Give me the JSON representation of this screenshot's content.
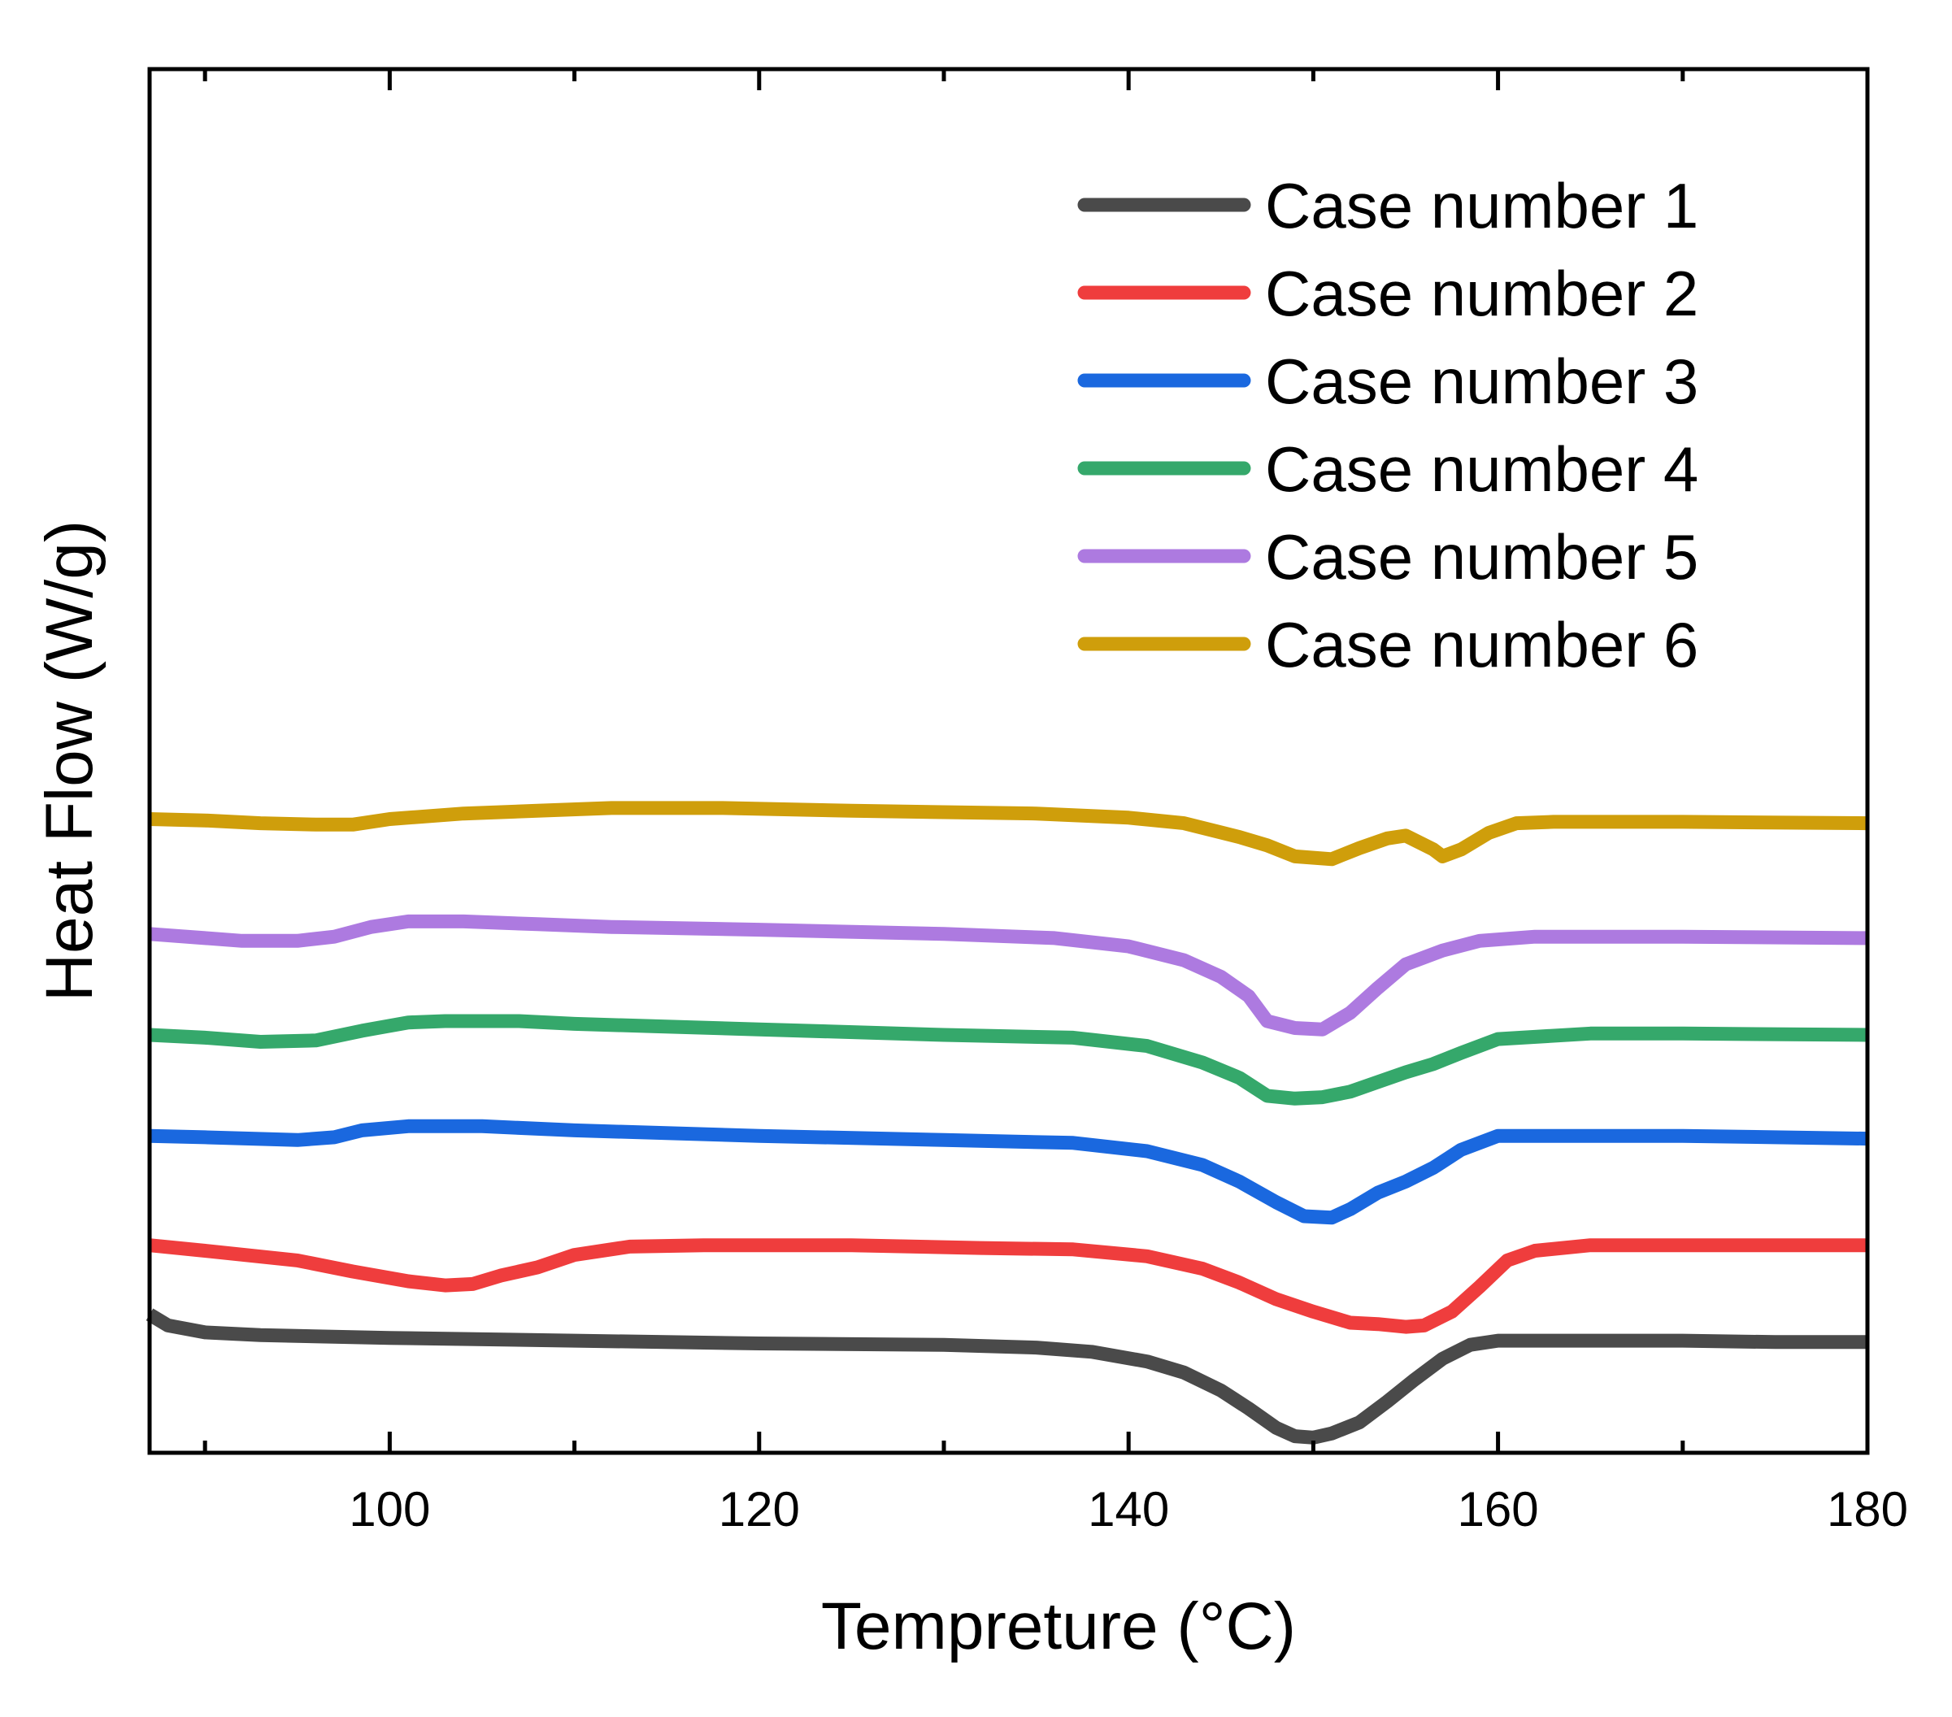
{
  "chart_data": {
    "type": "line",
    "title": "",
    "xlabel": "Tempreture (°C)",
    "ylabel": "Heat Flow (W/g)",
    "xlim": [
      87,
      180
    ],
    "ylim": [
      0,
      1
    ],
    "x_ticks": [
      100,
      120,
      140,
      160,
      180
    ],
    "x_tick_labels": [
      "100",
      "120",
      "140",
      "160",
      "180"
    ],
    "x_minor_ticks": [
      90,
      110,
      130,
      150,
      170
    ],
    "y_tick_labels_shown": false,
    "grid": false,
    "legend_position": "top-right",
    "series": [
      {
        "name": "Case number 1",
        "color": "#4a4a4a",
        "points": [
          [
            87,
            0.1
          ],
          [
            88,
            0.092
          ],
          [
            90,
            0.087
          ],
          [
            93,
            0.085
          ],
          [
            100,
            0.083
          ],
          [
            110,
            0.081
          ],
          [
            120,
            0.079
          ],
          [
            130,
            0.078
          ],
          [
            135,
            0.076
          ],
          [
            138,
            0.073
          ],
          [
            141,
            0.066
          ],
          [
            143,
            0.058
          ],
          [
            145,
            0.045
          ],
          [
            146.5,
            0.032
          ],
          [
            148,
            0.018
          ],
          [
            149,
            0.012
          ],
          [
            150,
            0.011
          ],
          [
            151,
            0.014
          ],
          [
            152.5,
            0.022
          ],
          [
            154,
            0.037
          ],
          [
            155.5,
            0.053
          ],
          [
            157,
            0.068
          ],
          [
            158.5,
            0.078
          ],
          [
            160,
            0.081
          ],
          [
            165,
            0.081
          ],
          [
            170,
            0.081
          ],
          [
            175,
            0.08
          ],
          [
            180,
            0.08
          ]
        ]
      },
      {
        "name": "Case number 2",
        "color": "#ef3d3d",
        "points": [
          [
            87,
            0.15
          ],
          [
            90,
            0.146
          ],
          [
            95,
            0.139
          ],
          [
            98,
            0.131
          ],
          [
            101,
            0.124
          ],
          [
            103,
            0.121
          ],
          [
            104.5,
            0.122
          ],
          [
            106,
            0.128
          ],
          [
            108,
            0.134
          ],
          [
            110,
            0.143
          ],
          [
            113,
            0.149
          ],
          [
            117,
            0.15
          ],
          [
            125,
            0.15
          ],
          [
            132,
            0.148
          ],
          [
            137,
            0.147
          ],
          [
            141,
            0.142
          ],
          [
            144,
            0.133
          ],
          [
            146,
            0.123
          ],
          [
            148,
            0.111
          ],
          [
            150,
            0.102
          ],
          [
            152,
            0.094
          ],
          [
            153.5,
            0.093
          ],
          [
            155,
            0.091
          ],
          [
            156,
            0.092
          ],
          [
            157.5,
            0.102
          ],
          [
            159,
            0.12
          ],
          [
            160.5,
            0.139
          ],
          [
            162,
            0.146
          ],
          [
            165,
            0.15
          ],
          [
            170,
            0.15
          ],
          [
            180,
            0.15
          ]
        ]
      },
      {
        "name": "Case number 3",
        "color": "#1a68df",
        "points": [
          [
            87,
            0.229
          ],
          [
            90,
            0.228
          ],
          [
            95,
            0.226
          ],
          [
            97,
            0.228
          ],
          [
            98.5,
            0.233
          ],
          [
            101,
            0.236
          ],
          [
            105,
            0.236
          ],
          [
            110,
            0.233
          ],
          [
            120,
            0.229
          ],
          [
            130,
            0.226
          ],
          [
            137,
            0.224
          ],
          [
            141,
            0.218
          ],
          [
            144,
            0.208
          ],
          [
            146,
            0.196
          ],
          [
            148,
            0.181
          ],
          [
            149.5,
            0.171
          ],
          [
            151,
            0.17
          ],
          [
            152,
            0.176
          ],
          [
            153.5,
            0.188
          ],
          [
            155,
            0.196
          ],
          [
            156.5,
            0.206
          ],
          [
            158,
            0.219
          ],
          [
            160,
            0.229
          ],
          [
            165,
            0.229
          ],
          [
            170,
            0.229
          ],
          [
            180,
            0.227
          ]
        ]
      },
      {
        "name": "Case number 4",
        "color": "#35a86b",
        "points": [
          [
            87,
            0.302
          ],
          [
            90,
            0.3
          ],
          [
            93,
            0.297
          ],
          [
            96,
            0.298
          ],
          [
            98.5,
            0.305
          ],
          [
            101,
            0.311
          ],
          [
            103,
            0.312
          ],
          [
            107,
            0.312
          ],
          [
            110,
            0.31
          ],
          [
            120,
            0.306
          ],
          [
            130,
            0.302
          ],
          [
            137,
            0.3
          ],
          [
            141,
            0.294
          ],
          [
            144,
            0.282
          ],
          [
            146,
            0.271
          ],
          [
            147.5,
            0.258
          ],
          [
            149,
            0.256
          ],
          [
            150.5,
            0.257
          ],
          [
            152,
            0.261
          ],
          [
            153.5,
            0.268
          ],
          [
            155,
            0.275
          ],
          [
            156.5,
            0.281
          ],
          [
            158,
            0.289
          ],
          [
            160,
            0.299
          ],
          [
            165,
            0.303
          ],
          [
            170,
            0.303
          ],
          [
            180,
            0.302
          ]
        ]
      },
      {
        "name": "Case number 5",
        "color": "#ad7ae0",
        "points": [
          [
            87,
            0.375
          ],
          [
            90,
            0.372
          ],
          [
            92,
            0.37
          ],
          [
            95,
            0.37
          ],
          [
            97,
            0.373
          ],
          [
            99,
            0.38
          ],
          [
            101,
            0.384
          ],
          [
            104,
            0.384
          ],
          [
            108,
            0.382
          ],
          [
            112,
            0.38
          ],
          [
            120,
            0.378
          ],
          [
            130,
            0.375
          ],
          [
            136,
            0.372
          ],
          [
            140,
            0.366
          ],
          [
            143,
            0.356
          ],
          [
            145,
            0.344
          ],
          [
            146.5,
            0.33
          ],
          [
            147.5,
            0.312
          ],
          [
            149,
            0.307
          ],
          [
            150.5,
            0.306
          ],
          [
            152,
            0.318
          ],
          [
            153.5,
            0.336
          ],
          [
            155,
            0.353
          ],
          [
            157,
            0.363
          ],
          [
            159,
            0.37
          ],
          [
            162,
            0.373
          ],
          [
            170,
            0.373
          ],
          [
            180,
            0.372
          ]
        ]
      },
      {
        "name": "Case number 6",
        "color": "#cf9e0b",
        "points": [
          [
            87,
            0.458
          ],
          [
            90,
            0.457
          ],
          [
            93,
            0.455
          ],
          [
            96,
            0.454
          ],
          [
            98,
            0.454
          ],
          [
            100,
            0.458
          ],
          [
            104,
            0.462
          ],
          [
            108,
            0.464
          ],
          [
            112,
            0.466
          ],
          [
            118,
            0.466
          ],
          [
            125,
            0.464
          ],
          [
            135,
            0.462
          ],
          [
            140,
            0.459
          ],
          [
            143,
            0.455
          ],
          [
            146,
            0.445
          ],
          [
            147.5,
            0.439
          ],
          [
            149,
            0.431
          ],
          [
            151,
            0.429
          ],
          [
            152.5,
            0.437
          ],
          [
            154,
            0.444
          ],
          [
            155,
            0.446
          ],
          [
            156.5,
            0.436
          ],
          [
            157,
            0.431
          ],
          [
            158,
            0.436
          ],
          [
            159.5,
            0.448
          ],
          [
            161,
            0.455
          ],
          [
            163,
            0.456
          ],
          [
            170,
            0.456
          ],
          [
            180,
            0.455
          ]
        ]
      }
    ]
  }
}
